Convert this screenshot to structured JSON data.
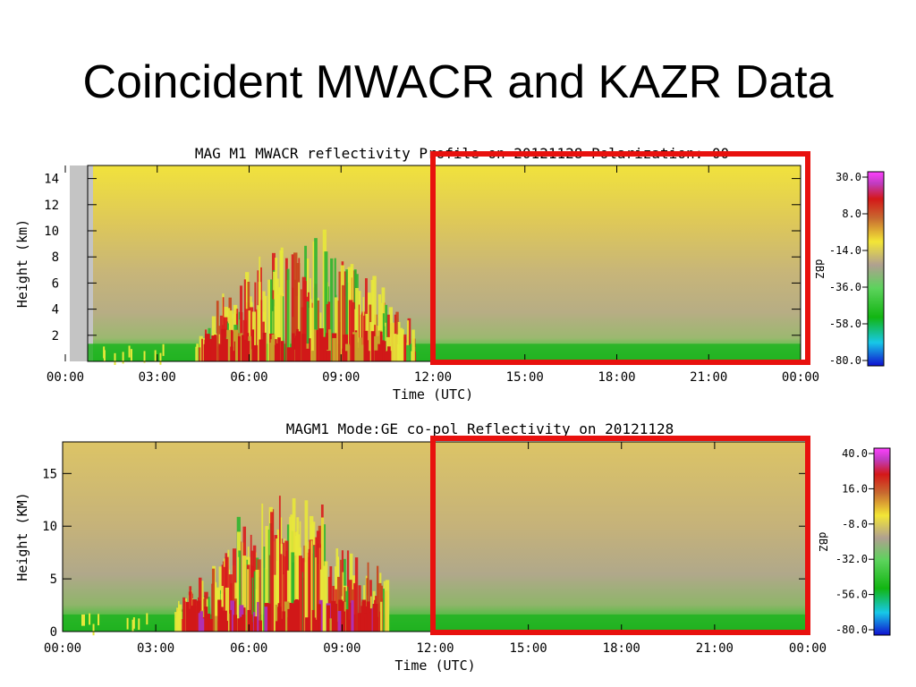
{
  "slide": {
    "title": "Coincident MWACR and KAZR Data"
  },
  "chart_data": [
    {
      "type": "heatmap",
      "title": "MAG M1 MWACR reflectivity Profile on 20121128 Polarization: 00",
      "xlabel": "Time (UTC)",
      "ylabel": "Height (km)",
      "x_ticks": [
        "00:00",
        "03:00",
        "06:00",
        "09:00",
        "12:00",
        "15:00",
        "18:00",
        "21:00",
        "00:00"
      ],
      "y_ticks": [
        2,
        4,
        6,
        8,
        10,
        12,
        14
      ],
      "ylim": [
        0,
        15
      ],
      "colorbar": {
        "label": "dBZ",
        "ticks": [
          "30.0",
          "8.0",
          "-14.0",
          "-36.0",
          "-58.0",
          "-80.0"
        ]
      },
      "highlight": {
        "color": "#e8110e",
        "from_time": "12:00",
        "to_time": "00:00"
      }
    },
    {
      "type": "heatmap",
      "title": "MAGM1 Mode:GE co-pol Reflectivity on 20121128",
      "xlabel": "Time (UTC)",
      "ylabel": "Height (KM)",
      "x_ticks": [
        "00:00",
        "03:00",
        "06:00",
        "09:00",
        "12:00",
        "15:00",
        "18:00",
        "21:00",
        "00:00"
      ],
      "y_ticks": [
        0,
        5,
        10,
        15
      ],
      "ylim": [
        0,
        18
      ],
      "colorbar": {
        "label": "dBZ",
        "ticks": [
          "40.0",
          "16.0",
          "-8.0",
          "-32.0",
          "-56.0",
          "-80.0"
        ]
      },
      "highlight": {
        "color": "#e8110e",
        "from_time": "12:00",
        "to_time": "00:00"
      }
    }
  ]
}
